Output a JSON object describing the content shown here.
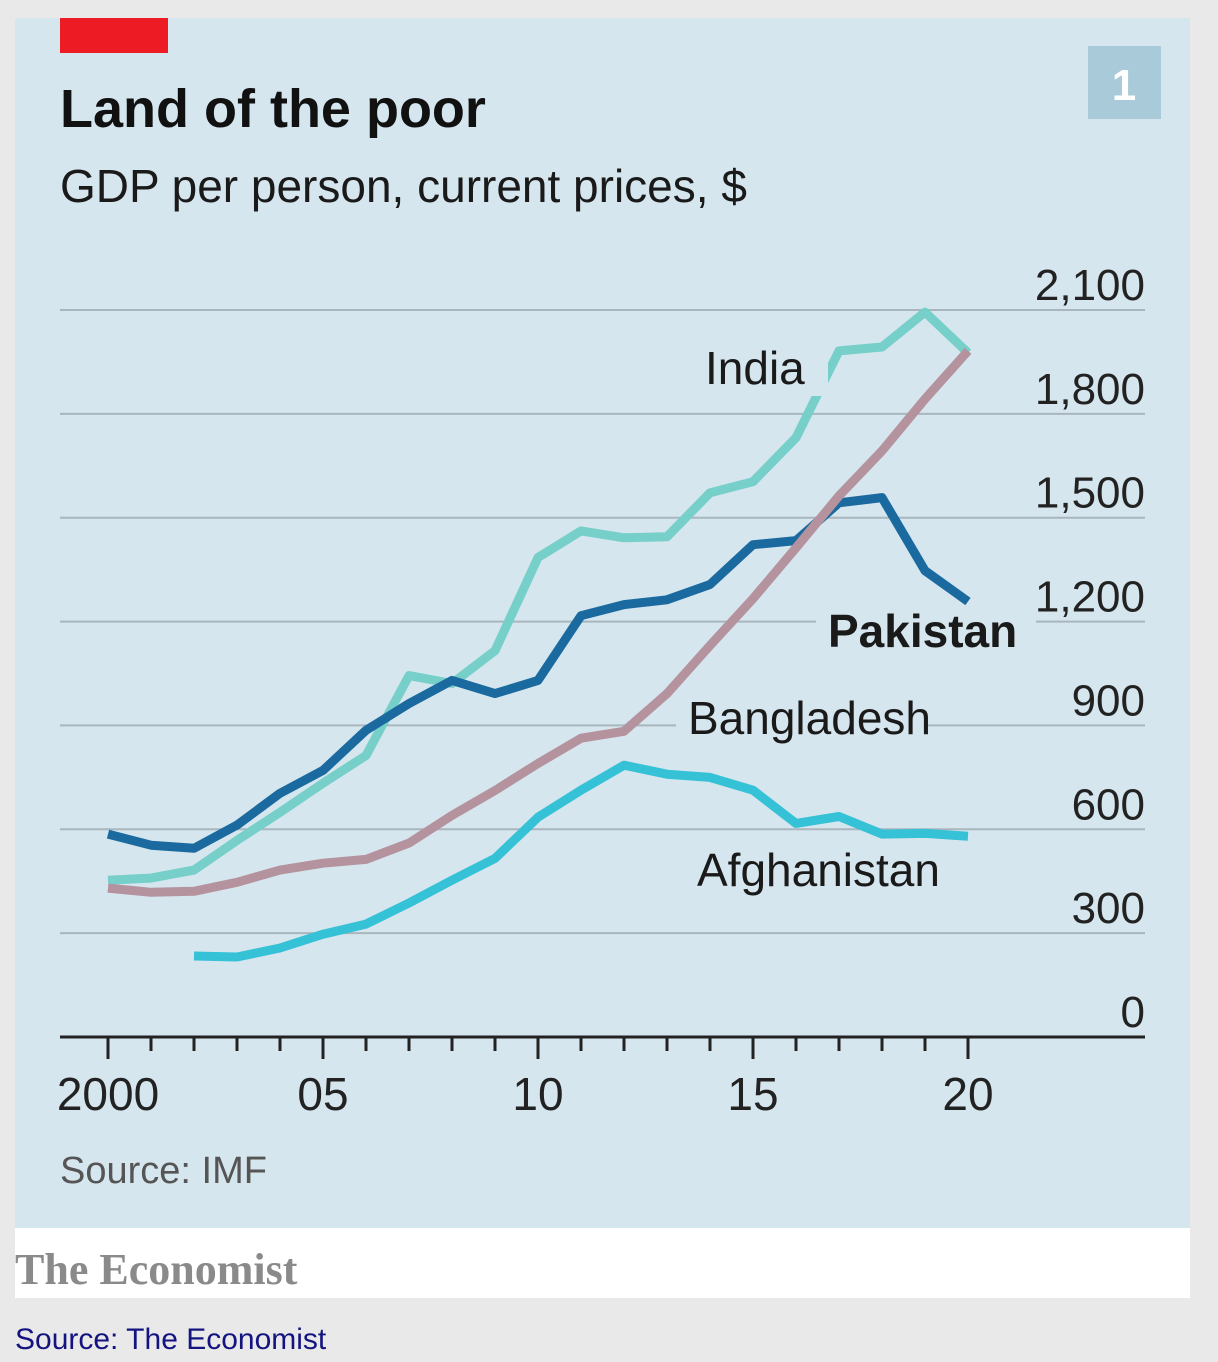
{
  "header": {
    "title": "Land of the poor",
    "subtitle": "GDP per person, current prices, $",
    "chart_number": "1",
    "accent_color": "#ed1c24"
  },
  "footer": {
    "source": "Source: IMF",
    "brand": "The Economist",
    "caption": "Source: The Economist"
  },
  "chart_data": {
    "type": "line",
    "title": "Land of the poor",
    "subtitle": "GDP per person, current prices, $",
    "xlabel": "",
    "ylabel": "GDP per person, current prices, $",
    "xlim": [
      2000,
      2020
    ],
    "ylim": [
      0,
      2100
    ],
    "grid": true,
    "y_ticks": [
      0,
      300,
      600,
      900,
      1200,
      1500,
      1800,
      2100
    ],
    "y_tick_labels": [
      "0",
      "300",
      "600",
      "900",
      "1,200",
      "1,500",
      "1,800",
      "2,100"
    ],
    "x_ticks": [
      2000,
      2005,
      2010,
      2015,
      2020
    ],
    "x_tick_labels": [
      "2000",
      "05",
      "10",
      "15",
      "20"
    ],
    "legend": "inline labels",
    "series": [
      {
        "name": "India",
        "color": "#76cfc9",
        "x": [
          2000,
          2001,
          2002,
          2003,
          2004,
          2005,
          2006,
          2007,
          2008,
          2009,
          2010,
          2011,
          2012,
          2013,
          2014,
          2015,
          2016,
          2017,
          2018,
          2019,
          2020
        ],
        "values": [
          453,
          459,
          482,
          568,
          649,
          733,
          813,
          1044,
          1021,
          1116,
          1385,
          1462,
          1442,
          1445,
          1572,
          1604,
          1731,
          1982,
          1993,
          2094,
          1976
        ]
      },
      {
        "name": "Pakistan",
        "color": "#1a6aa0",
        "x": [
          2000,
          2001,
          2002,
          2003,
          2004,
          2005,
          2006,
          2007,
          2008,
          2009,
          2010,
          2011,
          2012,
          2013,
          2014,
          2015,
          2016,
          2017,
          2018,
          2019,
          2020
        ],
        "values": [
          586,
          554,
          545,
          612,
          704,
          770,
          886,
          963,
          1030,
          992,
          1030,
          1217,
          1249,
          1263,
          1307,
          1422,
          1434,
          1543,
          1558,
          1347,
          1258
        ]
      },
      {
        "name": "Bangladesh",
        "color": "#b4939e",
        "x": [
          2000,
          2001,
          2002,
          2003,
          2004,
          2005,
          2006,
          2007,
          2008,
          2009,
          2010,
          2011,
          2012,
          2013,
          2014,
          2015,
          2016,
          2017,
          2018,
          2019,
          2020
        ],
        "values": [
          430,
          418,
          421,
          447,
          482,
          502,
          513,
          560,
          640,
          712,
          790,
          863,
          883,
          992,
          1131,
          1266,
          1413,
          1563,
          1693,
          1843,
          1982
        ]
      },
      {
        "name": "Afghanistan",
        "color": "#35c1d6",
        "x": [
          2002,
          2003,
          2004,
          2005,
          2006,
          2007,
          2008,
          2009,
          2010,
          2011,
          2012,
          2013,
          2014,
          2015,
          2016,
          2017,
          2018,
          2019,
          2020
        ],
        "values": [
          234,
          231,
          257,
          297,
          326,
          387,
          453,
          516,
          635,
          713,
          785,
          759,
          750,
          713,
          617,
          637,
          586,
          588,
          580
        ]
      }
    ]
  }
}
